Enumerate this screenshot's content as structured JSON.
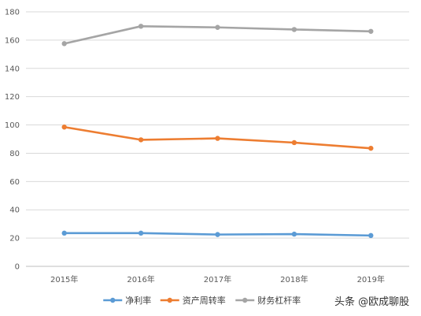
{
  "chart_data": {
    "type": "line",
    "categories": [
      "2015年",
      "2016年",
      "2017年",
      "2018年",
      "2019年"
    ],
    "series": [
      {
        "name": "净利率",
        "color": "#5B9BD5",
        "values": [
          23.5,
          23.5,
          22.5,
          22.8,
          21.8
        ]
      },
      {
        "name": "资产周转率",
        "color": "#ED7D31",
        "values": [
          98.5,
          89.5,
          90.5,
          87.5,
          83.5
        ]
      },
      {
        "name": "财务杠杆率",
        "color": "#A5A5A5",
        "values": [
          157.5,
          169.8,
          169.0,
          167.5,
          166.2
        ]
      }
    ],
    "ylim": [
      0,
      180
    ],
    "yticks": [
      "0",
      "20",
      "40",
      "60",
      "80",
      "100",
      "120",
      "140",
      "160",
      "180"
    ],
    "grid": true,
    "legend": "bottom"
  },
  "watermark": {
    "text": "头条 @欧成聊股",
    "colors": {
      "primary": "#333333"
    }
  }
}
